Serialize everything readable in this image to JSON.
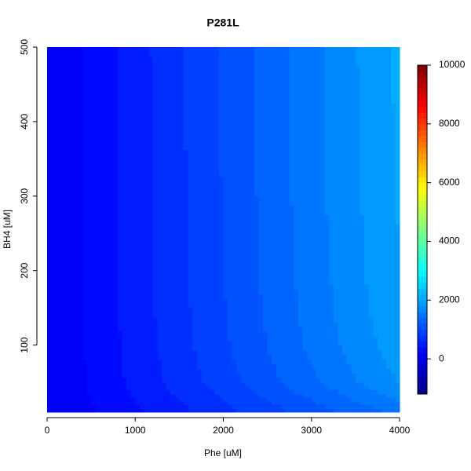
{
  "chart_data": {
    "type": "contour",
    "title": "P281L",
    "x_label": "Phe [uM]",
    "y_label": "BH4 [uM]",
    "x": [
      0,
      400,
      800,
      1200,
      1600,
      2000,
      2400,
      2800,
      3200,
      3600,
      4000
    ],
    "y": [
      10,
      50,
      100,
      150,
      200,
      300,
      400,
      500
    ],
    "z": [
      [
        0,
        146,
        291,
        437,
        582,
        728,
        874,
        1019,
        1165,
        1310,
        1456
      ],
      [
        0,
        181,
        362,
        544,
        725,
        906,
        1087,
        1268,
        1449,
        1631,
        1812
      ],
      [
        0,
        192,
        385,
        577,
        770,
        962,
        1154,
        1347,
        1539,
        1732,
        1924
      ],
      [
        0,
        197,
        394,
        591,
        788,
        985,
        1182,
        1379,
        1576,
        1773,
        1970
      ],
      [
        0,
        199,
        399,
        598,
        798,
        997,
        1197,
        1396,
        1596,
        1795,
        1995
      ],
      [
        0,
        202,
        404,
        607,
        809,
        1011,
        1213,
        1415,
        1617,
        1820,
        2022
      ],
      [
        0,
        204,
        407,
        611,
        815,
        1018,
        1222,
        1425,
        1629,
        1833,
        2036
      ],
      [
        0,
        204,
        409,
        613,
        818,
        1022,
        1227,
        1431,
        1636,
        1840,
        2045
      ]
    ],
    "xlim": [
      0,
      4000
    ],
    "xticks": [
      0,
      1000,
      2000,
      3000,
      4000
    ],
    "ylim": [
      10,
      500
    ],
    "yticks": [
      100,
      200,
      300,
      400,
      500
    ],
    "zlim": [
      -1200,
      10000
    ],
    "zticks": [
      0,
      2000,
      4000,
      6000,
      8000,
      10000
    ],
    "level_step": 200,
    "colormap": "jet"
  }
}
